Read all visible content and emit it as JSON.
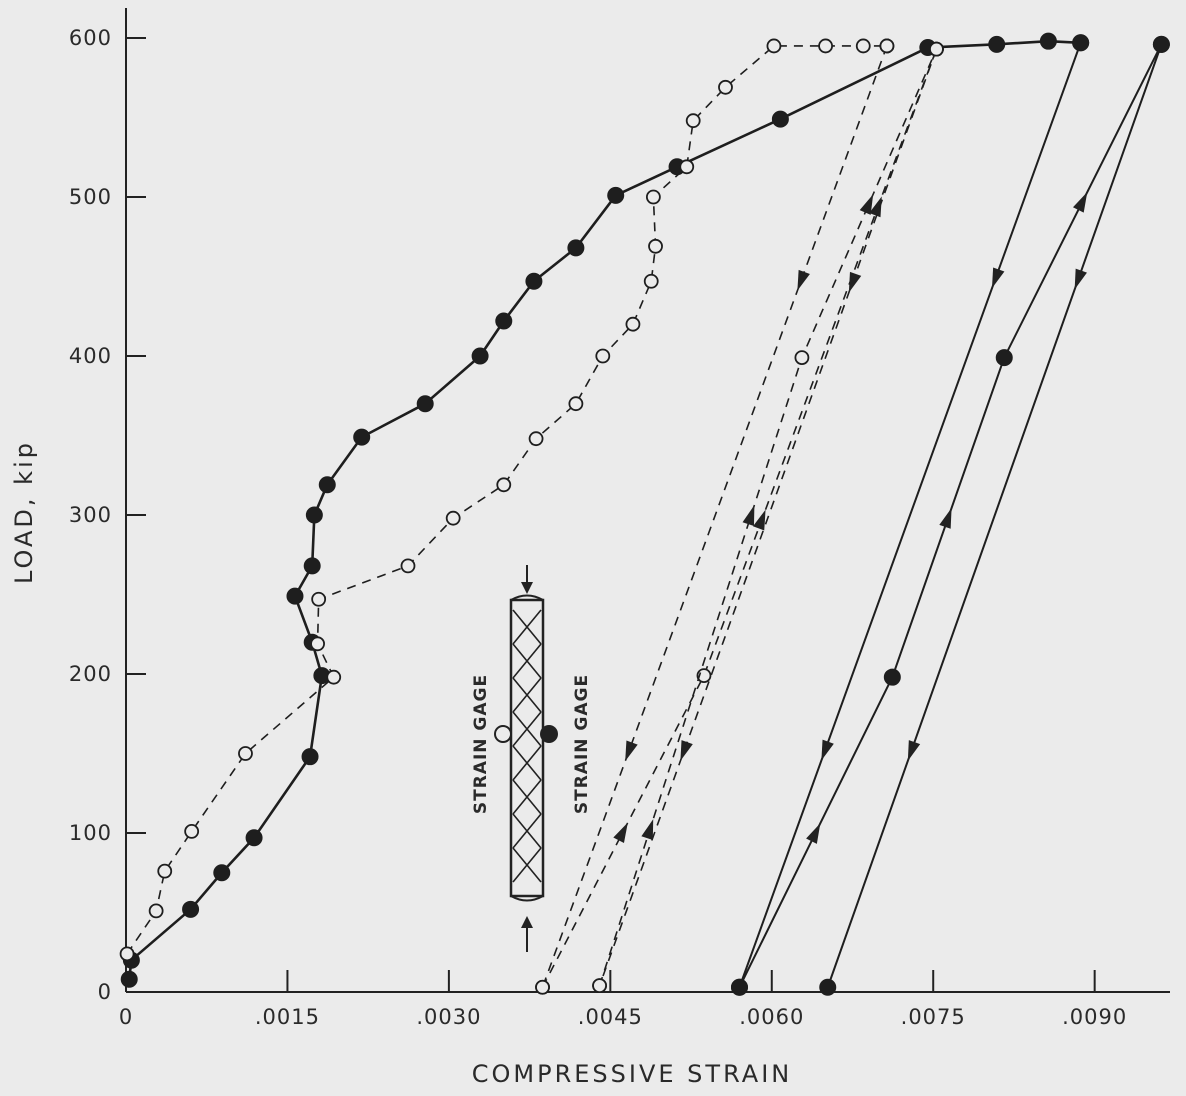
{
  "chart_data": {
    "type": "line",
    "xlabel": "COMPRESSIVE STRAIN",
    "ylabel": "LOAD, kip",
    "xlim": [
      0,
      0.0097
    ],
    "ylim": [
      0,
      600
    ],
    "x_ticks": [
      {
        "value": 0,
        "label": "0"
      },
      {
        "value": 0.0015,
        "label": ".0015"
      },
      {
        "value": 0.003,
        "label": ".0030"
      },
      {
        "value": 0.0045,
        "label": ".0045"
      },
      {
        "value": 0.006,
        "label": ".0060"
      },
      {
        "value": 0.0075,
        "label": ".0075"
      },
      {
        "value": 0.009,
        "label": ".0090"
      }
    ],
    "y_ticks": [
      {
        "value": 0,
        "label": "0"
      },
      {
        "value": 100,
        "label": "100"
      },
      {
        "value": 200,
        "label": "200"
      },
      {
        "value": 300,
        "label": "300"
      },
      {
        "value": 400,
        "label": "400"
      },
      {
        "value": 500,
        "label": "500"
      },
      {
        "value": 600,
        "label": "600"
      }
    ],
    "grid": false,
    "series": [
      {
        "marker": "filled-circle",
        "line": "solid",
        "points": [
          [
            3e-05,
            8
          ],
          [
            5e-05,
            20
          ],
          [
            0.0006,
            52
          ],
          [
            0.00089,
            75
          ],
          [
            0.00119,
            97
          ],
          [
            0.00171,
            148
          ],
          [
            0.00182,
            199
          ],
          [
            0.00173,
            220
          ],
          [
            0.00157,
            249
          ],
          [
            0.00173,
            268
          ],
          [
            0.00175,
            300
          ],
          [
            0.00187,
            319
          ],
          [
            0.00219,
            349
          ],
          [
            0.00278,
            370
          ],
          [
            0.00329,
            400
          ],
          [
            0.00351,
            422
          ],
          [
            0.00379,
            447
          ],
          [
            0.00418,
            468
          ],
          [
            0.00455,
            501
          ],
          [
            0.00512,
            519
          ],
          [
            0.00608,
            549
          ],
          [
            0.00745,
            594
          ],
          [
            0.00809,
            596
          ],
          [
            0.00857,
            598
          ],
          [
            0.00887,
            597
          ]
        ],
        "unload_reload_paths": [
          {
            "direction": "unload",
            "points": [
              [
                0.00887,
                597
              ],
              [
                0.0057,
                3
              ]
            ]
          },
          {
            "direction": "reload",
            "points": [
              [
                0.0057,
                3
              ],
              [
                0.00712,
                198
              ],
              [
                0.00816,
                399
              ],
              [
                0.00962,
                596
              ]
            ]
          },
          {
            "direction": "unload",
            "points": [
              [
                0.00962,
                596
              ],
              [
                0.00652,
                3
              ]
            ]
          }
        ]
      },
      {
        "marker": "open-circle",
        "line": "dashed",
        "points": [
          [
            1e-05,
            24
          ],
          [
            0.00028,
            51
          ],
          [
            0.00036,
            76
          ],
          [
            0.00061,
            101
          ],
          [
            0.00111,
            150
          ],
          [
            0.00193,
            198
          ],
          [
            0.00178,
            219
          ],
          [
            0.00179,
            247
          ],
          [
            0.00262,
            268
          ],
          [
            0.00304,
            298
          ],
          [
            0.00351,
            319
          ],
          [
            0.00381,
            348
          ],
          [
            0.00418,
            370
          ],
          [
            0.00443,
            400
          ],
          [
            0.00471,
            420
          ],
          [
            0.00488,
            447
          ],
          [
            0.00492,
            469
          ],
          [
            0.0049,
            500
          ],
          [
            0.00521,
            519
          ],
          [
            0.00527,
            548
          ],
          [
            0.00557,
            569
          ],
          [
            0.00602,
            595
          ],
          [
            0.0065,
            595
          ],
          [
            0.00685,
            595
          ],
          [
            0.00707,
            595
          ]
        ],
        "unload_reload_paths": [
          {
            "direction": "unload",
            "points": [
              [
                0.00707,
                595
              ],
              [
                0.00387,
                3
              ]
            ]
          },
          {
            "direction": "reload",
            "points": [
              [
                0.00387,
                3
              ],
              [
                0.00537,
                199
              ],
              [
                0.00753,
                593
              ]
            ]
          },
          {
            "direction": "unload",
            "points": [
              [
                0.00753,
                593
              ],
              [
                0.0044,
                4
              ]
            ]
          },
          {
            "direction": "reload",
            "points": [
              [
                0.0044,
                4
              ],
              [
                0.00628,
                399
              ],
              [
                0.00753,
                593
              ]
            ]
          }
        ]
      }
    ],
    "annotations": [
      {
        "text": "STRAIN GAGE",
        "side": "left",
        "marker": "open-circle"
      },
      {
        "text": "STRAIN GAGE",
        "side": "right",
        "marker": "filled-circle"
      }
    ]
  }
}
